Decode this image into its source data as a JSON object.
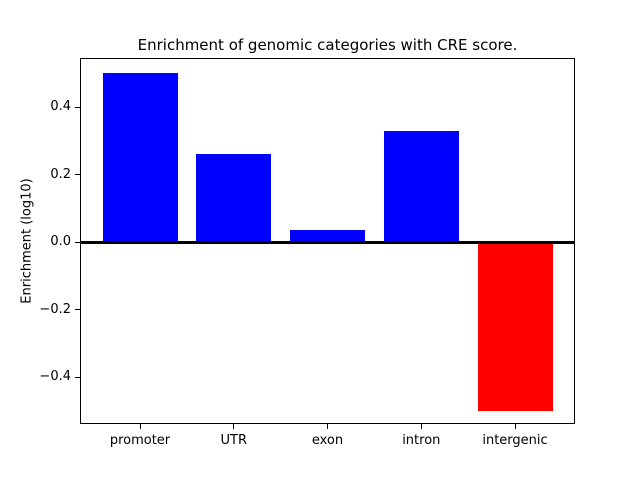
{
  "chart_data": {
    "type": "bar",
    "title": "Enrichment of genomic categories with CRE score.",
    "xlabel": "",
    "ylabel": "Enrichment (log10)",
    "categories": [
      "promoter",
      "UTR",
      "exon",
      "intron",
      "intergenic"
    ],
    "values": [
      0.5,
      0.26,
      0.035,
      0.33,
      -0.5
    ],
    "bar_colors": [
      "#0000ff",
      "#0000ff",
      "#0000ff",
      "#0000ff",
      "#ff0000"
    ],
    "positive_color": "#0000ff",
    "negative_color": "#ff0000",
    "bar_width": 0.8,
    "ylim": [
      -0.539,
      0.545
    ],
    "xlim": [
      -0.64,
      4.64
    ],
    "yticks": [
      0.4,
      0.2,
      0.0,
      -0.2,
      -0.4
    ],
    "ytick_labels": [
      "0.4",
      "0.2",
      "0.0",
      "−0.2",
      "−0.4"
    ],
    "zero_line": true,
    "grid": false,
    "legend": null,
    "background_color": "#ffffff",
    "axes_edge_color": "#000000"
  }
}
